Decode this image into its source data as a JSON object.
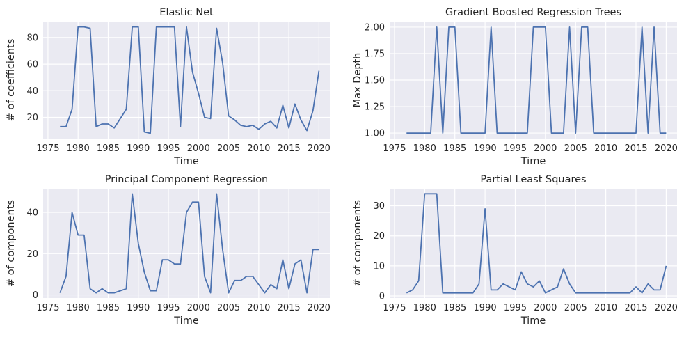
{
  "chart_data": [
    {
      "type": "line",
      "title": "Elastic Net",
      "xlabel": "Time",
      "ylabel": "# of coefficients",
      "xlim": [
        1974.2,
        2021.8
      ],
      "ylim": [
        4,
        92
      ],
      "xticks": [
        "1975",
        "1980",
        "1985",
        "1990",
        "1995",
        "2000",
        "2005",
        "2010",
        "2015",
        "2020"
      ],
      "yticks": [
        "20",
        "40",
        "60",
        "80"
      ],
      "grid": true,
      "line_color": "#4c72b0",
      "series": [
        {
          "x": [
            1977,
            1978,
            1979,
            1980,
            1981,
            1982,
            1983,
            1984,
            1985,
            1986,
            1987,
            1988,
            1989,
            1990,
            1991,
            1992,
            1993,
            1994,
            1995,
            1996,
            1997,
            1998,
            1999,
            2000,
            2001,
            2002,
            2003,
            2004,
            2005,
            2006,
            2007,
            2008,
            2009,
            2010,
            2011,
            2012,
            2013,
            2014,
            2015,
            2016,
            2017,
            2018,
            2019,
            2020
          ],
          "y": [
            13,
            13,
            26,
            88,
            88,
            87,
            13,
            15,
            15,
            12,
            19,
            26,
            88,
            88,
            9,
            8,
            88,
            88,
            88,
            88,
            13,
            88,
            54,
            38,
            20,
            19,
            87,
            61,
            21,
            18,
            14,
            13,
            14,
            11,
            15,
            17,
            12,
            29,
            12,
            30,
            18,
            10,
            25,
            55
          ]
        }
      ]
    },
    {
      "type": "line",
      "title": "Gradient Boosted Regression Trees",
      "xlabel": "Time",
      "ylabel": "Max Depth",
      "xlim": [
        1974.2,
        2021.8
      ],
      "ylim": [
        0.948,
        2.052
      ],
      "xticks": [
        "1975",
        "1980",
        "1985",
        "1990",
        "1995",
        "2000",
        "2005",
        "2010",
        "2015",
        "2020"
      ],
      "yticks": [
        "1.00",
        "1.25",
        "1.50",
        "1.75",
        "2.00"
      ],
      "grid": true,
      "line_color": "#4c72b0",
      "series": [
        {
          "x": [
            1977,
            1978,
            1979,
            1980,
            1981,
            1982,
            1983,
            1984,
            1985,
            1986,
            1987,
            1988,
            1989,
            1990,
            1991,
            1992,
            1993,
            1994,
            1995,
            1996,
            1997,
            1998,
            1999,
            2000,
            2001,
            2002,
            2003,
            2004,
            2005,
            2006,
            2007,
            2008,
            2009,
            2010,
            2011,
            2012,
            2013,
            2014,
            2015,
            2016,
            2017,
            2018,
            2019,
            2020
          ],
          "y": [
            1,
            1,
            1,
            1,
            1,
            2,
            1,
            2,
            2,
            1,
            1,
            1,
            1,
            1,
            2,
            1,
            1,
            1,
            1,
            1,
            1,
            2,
            2,
            2,
            1,
            1,
            1,
            2,
            1,
            2,
            2,
            1,
            1,
            1,
            1,
            1,
            1,
            1,
            1,
            2,
            1,
            2,
            1,
            1
          ]
        }
      ]
    },
    {
      "type": "line",
      "title": "Principal Component Regression",
      "xlabel": "Time",
      "ylabel": "# of components",
      "xlim": [
        1974.2,
        2021.8
      ],
      "ylim": [
        -1.5,
        51.5
      ],
      "xticks": [
        "1975",
        "1980",
        "1985",
        "1990",
        "1995",
        "2000",
        "2005",
        "2010",
        "2015",
        "2020"
      ],
      "yticks": [
        "0",
        "20",
        "40"
      ],
      "grid": true,
      "line_color": "#4c72b0",
      "series": [
        {
          "x": [
            1977,
            1978,
            1979,
            1980,
            1981,
            1982,
            1983,
            1984,
            1985,
            1986,
            1987,
            1988,
            1989,
            1990,
            1991,
            1992,
            1993,
            1994,
            1995,
            1996,
            1997,
            1998,
            1999,
            2000,
            2001,
            2002,
            2003,
            2004,
            2005,
            2006,
            2007,
            2008,
            2009,
            2010,
            2011,
            2012,
            2013,
            2014,
            2015,
            2016,
            2017,
            2018,
            2019,
            2020
          ],
          "y": [
            1,
            9,
            40,
            29,
            29,
            3,
            1,
            3,
            1,
            1,
            2,
            3,
            49,
            25,
            11,
            2,
            2,
            17,
            17,
            15,
            15,
            40,
            45,
            45,
            9,
            1,
            49,
            22,
            1,
            7,
            7,
            9,
            9,
            5,
            1,
            5,
            3,
            17,
            3,
            15,
            17,
            1,
            22,
            22
          ]
        }
      ]
    },
    {
      "type": "line",
      "title": "Partial Least Squares",
      "xlabel": "Time",
      "ylabel": "# of components",
      "xlim": [
        1974.2,
        2021.8
      ],
      "ylim": [
        -0.7,
        35.7
      ],
      "xticks": [
        "1975",
        "1980",
        "1985",
        "1990",
        "1995",
        "2000",
        "2005",
        "2010",
        "2015",
        "2020"
      ],
      "yticks": [
        "0",
        "10",
        "20",
        "30"
      ],
      "grid": true,
      "line_color": "#4c72b0",
      "series": [
        {
          "x": [
            1977,
            1978,
            1979,
            1980,
            1981,
            1982,
            1983,
            1984,
            1985,
            1986,
            1987,
            1988,
            1989,
            1990,
            1991,
            1992,
            1993,
            1994,
            1995,
            1996,
            1997,
            1998,
            1999,
            2000,
            2001,
            2002,
            2003,
            2004,
            2005,
            2006,
            2007,
            2008,
            2009,
            2010,
            2011,
            2012,
            2013,
            2014,
            2015,
            2016,
            2017,
            2018,
            2019,
            2020
          ],
          "y": [
            1,
            2,
            5,
            34,
            34,
            34,
            1,
            1,
            1,
            1,
            1,
            1,
            4,
            29,
            2,
            2,
            4,
            3,
            2,
            8,
            4,
            3,
            5,
            1,
            2,
            3,
            9,
            4,
            1,
            1,
            1,
            1,
            1,
            1,
            1,
            1,
            1,
            1,
            3,
            1,
            4,
            2,
            2,
            10
          ]
        }
      ]
    }
  ]
}
